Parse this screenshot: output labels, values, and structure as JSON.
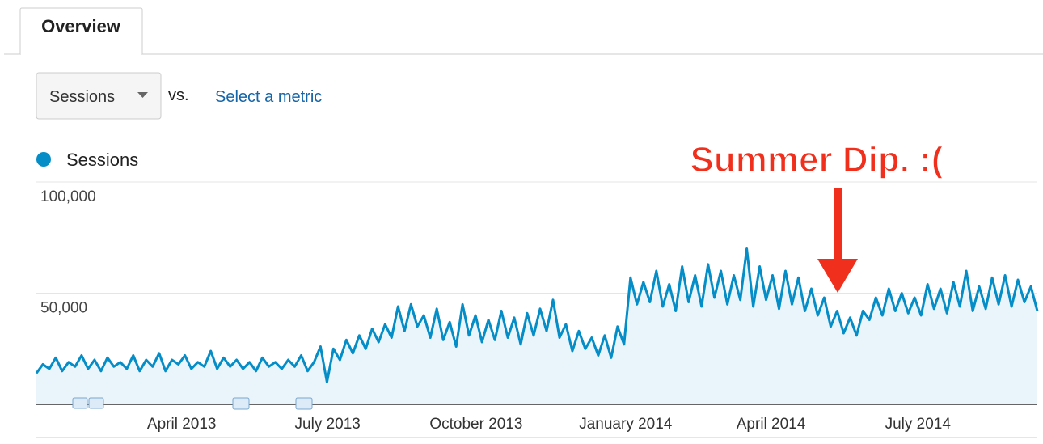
{
  "ui": {
    "tab": "Overview",
    "metric": "Sessions",
    "vs": "vs.",
    "select_metric": "Select a metric"
  },
  "chart_data": {
    "type": "area",
    "annotation": "Summer Dip. :(",
    "series": [
      {
        "name": "Sessions",
        "color": "#058dc7",
        "fill": "#e9f4fb",
        "values": [
          14000,
          18000,
          16000,
          21000,
          15000,
          19000,
          17000,
          22000,
          16000,
          20000,
          15000,
          21000,
          17000,
          19000,
          16000,
          22000,
          15000,
          20000,
          17000,
          23000,
          15000,
          20000,
          18000,
          22000,
          16000,
          19000,
          17000,
          24000,
          16000,
          21000,
          17000,
          20000,
          16000,
          19000,
          15000,
          21000,
          17000,
          19000,
          16000,
          20000,
          17000,
          22000,
          15000,
          19000,
          26000,
          10000,
          25000,
          20000,
          29000,
          23000,
          31000,
          25000,
          34000,
          28000,
          36000,
          30000,
          44000,
          33000,
          45000,
          35000,
          40000,
          30000,
          43000,
          29000,
          37000,
          26000,
          45000,
          31000,
          40000,
          28000,
          38000,
          29000,
          42000,
          30000,
          39000,
          27000,
          41000,
          31000,
          43000,
          33000,
          47000,
          30000,
          36000,
          24000,
          33000,
          25000,
          30000,
          22000,
          31000,
          21000,
          35000,
          27000,
          57000,
          45000,
          55000,
          46000,
          60000,
          44000,
          54000,
          42000,
          62000,
          46000,
          58000,
          44000,
          63000,
          48000,
          60000,
          45000,
          58000,
          47000,
          70000,
          44000,
          62000,
          47000,
          58000,
          43000,
          60000,
          45000,
          57000,
          42000,
          52000,
          40000,
          48000,
          35000,
          42000,
          32000,
          39000,
          31000,
          42000,
          38000,
          48000,
          40000,
          52000,
          42000,
          50000,
          41000,
          48000,
          40000,
          54000,
          43000,
          52000,
          41000,
          55000,
          44000,
          60000,
          42000,
          53000,
          43000,
          57000,
          45000,
          58000,
          44000,
          56000,
          46000,
          53000,
          42000
        ]
      }
    ],
    "xlim": [
      0,
      155
    ],
    "xticks": [
      {
        "value": 22.5,
        "label": "April 2013"
      },
      {
        "value": 45.1,
        "label": "July 2013"
      },
      {
        "value": 68.1,
        "label": "October 2013"
      },
      {
        "value": 91.25,
        "label": "January 2014"
      },
      {
        "value": 113.75,
        "label": "April 2014"
      },
      {
        "value": 136.5,
        "label": "July 2014"
      }
    ],
    "ylim": [
      0,
      100000
    ],
    "yticks": [
      {
        "value": 50000,
        "label": "50,000"
      },
      {
        "value": 100000,
        "label": "100,000"
      }
    ],
    "grid": true
  }
}
